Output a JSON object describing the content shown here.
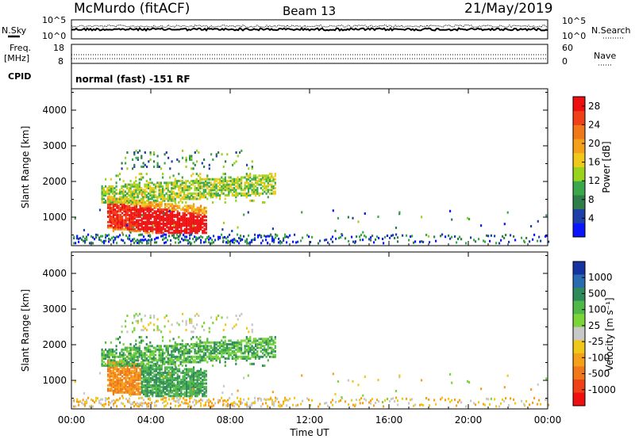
{
  "header": {
    "station": "McMurdo (fitACF)",
    "beam": "Beam 13",
    "date": "21/May/2019"
  },
  "noise_panel": {
    "left_label": "N.Sky",
    "right_label": "N.Search",
    "left_ticks": [
      "10^5",
      "10^0"
    ],
    "right_ticks": [
      "10^5",
      "10^0"
    ]
  },
  "freq_panel": {
    "left_label_1": "Freq.",
    "left_label_2": "[MHz]",
    "right_label": "Nave",
    "left_ticks": [
      "18",
      "8"
    ],
    "right_ticks": [
      "60",
      "0"
    ]
  },
  "cpid": {
    "label": "CPID",
    "value": "normal (fast) -151 RF"
  },
  "colors": {
    "power": [
      "#0a14ff",
      "#1c3fa8",
      "#2f7d4a",
      "#3aa84a",
      "#9ad31c",
      "#f0c81a",
      "#f5a01a",
      "#f07818",
      "#f04018",
      "#ee1010"
    ],
    "velocity": [
      "#1433a0",
      "#2a6ab0",
      "#2e8a58",
      "#4fb848",
      "#7ad43a",
      "#c8c8c8",
      "#f0c81a",
      "#f5a01a",
      "#f07818",
      "#f04018",
      "#ee1010"
    ]
  },
  "chart_data": [
    {
      "type": "heatmap",
      "name": "power",
      "ylabel": "Slant Range [km]",
      "yticks": [
        "1000",
        "2000",
        "3000",
        "4000"
      ],
      "ylim": [
        200,
        4600
      ],
      "xticks": [
        "00:00",
        "04:00",
        "08:00",
        "12:00",
        "16:00",
        "20:00",
        "00:00"
      ],
      "colorbar_label": "Power [dB]",
      "colorbar_ticks": [
        "4",
        "8",
        "12",
        "16",
        "20",
        "24",
        "28"
      ],
      "colorbar_range": [
        0,
        30
      ]
    },
    {
      "type": "heatmap",
      "name": "velocity",
      "ylabel": "Slant Range [km]",
      "yticks": [
        "1000",
        "2000",
        "3000",
        "4000"
      ],
      "ylim": [
        200,
        4600
      ],
      "xticks": [
        "00:00",
        "04:00",
        "08:00",
        "12:00",
        "16:00",
        "20:00",
        "00:00"
      ],
      "xlabel": "Time UT",
      "colorbar_label": "Velocity [m s⁻¹]",
      "colorbar_ticks": [
        "1000",
        "500",
        "100",
        "25",
        "-25",
        "-100",
        "-500",
        "-1000"
      ]
    }
  ]
}
